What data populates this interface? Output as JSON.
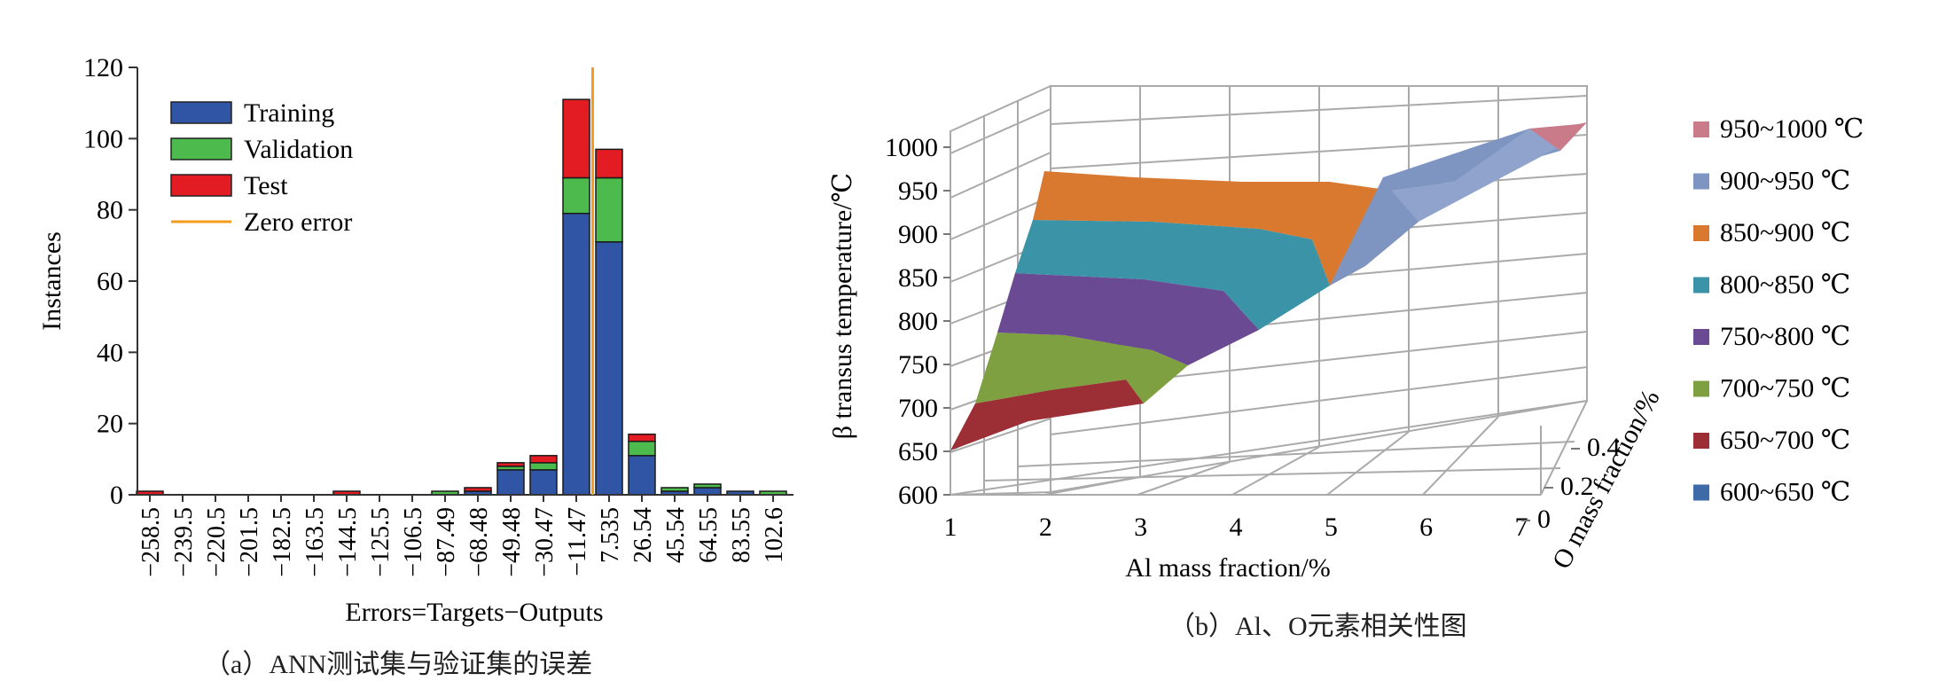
{
  "chart_data": [
    {
      "type": "bar",
      "stacked": true,
      "xlabel": "Errors=Targets−Outputs",
      "ylabel": "Instances",
      "caption": "（a）ANN测试集与验证集的误差",
      "ylim": [
        0,
        120
      ],
      "yticks": [
        "0",
        "20",
        "40",
        "60",
        "80",
        "100",
        "120"
      ],
      "categories": [
        "−258.5",
        "−239.5",
        "−220.5",
        "−201.5",
        "−182.5",
        "−163.5",
        "−144.5",
        "−125.5",
        "−106.5",
        "−87.49",
        "−68.48",
        "−49.48",
        "−30.47",
        "−11.47",
        "7.535",
        "26.54",
        "45.54",
        "64.55",
        "83.55",
        "102.6"
      ],
      "series": [
        {
          "name": "Training",
          "color": "#2f55a4",
          "values": [
            0,
            0,
            0,
            0,
            0,
            0,
            0,
            0,
            0,
            0,
            1,
            7,
            7,
            79,
            71,
            11,
            1,
            2,
            1,
            0
          ]
        },
        {
          "name": "Validation",
          "color": "#4cba4c",
          "values": [
            0,
            0,
            0,
            0,
            0,
            0,
            0,
            0,
            0,
            1,
            0,
            1,
            2,
            10,
            18,
            4,
            1,
            1,
            0,
            1
          ]
        },
        {
          "name": "Test",
          "color": "#e31b23",
          "values": [
            1,
            0,
            0,
            0,
            0,
            0,
            1,
            0,
            0,
            0,
            1,
            1,
            2,
            22,
            8,
            2,
            0,
            0,
            0,
            0
          ]
        }
      ],
      "zero_error": {
        "name": "Zero error",
        "color": "#f39c1f",
        "x_between": [
          "−11.47",
          "7.535"
        ]
      },
      "legend": "top-left",
      "grid": false
    },
    {
      "type": "surface3d",
      "caption": "（b）Al、O元素相关性图",
      "xlabel": "Al mass fraction/%",
      "ylabel": "O mass fraction/%",
      "zlabel": "β transus temperature/℃",
      "xticks": [
        "1",
        "2",
        "3",
        "4",
        "5",
        "6",
        "7"
      ],
      "yticks": [
        "0",
        "0.2",
        "0.4"
      ],
      "zticks": [
        "600",
        "650",
        "700",
        "750",
        "800",
        "850",
        "900",
        "950",
        "1000"
      ],
      "zlim": [
        600,
        1000
      ],
      "legend": [
        {
          "label": "950~1000 ℃",
          "color": "#c97b8a"
        },
        {
          "label": "900~950 ℃",
          "color": "#7e95c2"
        },
        {
          "label": "850~900 ℃",
          "color": "#d9782f"
        },
        {
          "label": "800~850 ℃",
          "color": "#3a93a7"
        },
        {
          "label": "750~800 ℃",
          "color": "#6a4a92"
        },
        {
          "label": "700~750 ℃",
          "color": "#7fa040"
        },
        {
          "label": "650~700 ℃",
          "color": "#9c2f35"
        },
        {
          "label": "600~650 ℃",
          "color": "#3e6aa8"
        }
      ],
      "grid": true
    }
  ]
}
